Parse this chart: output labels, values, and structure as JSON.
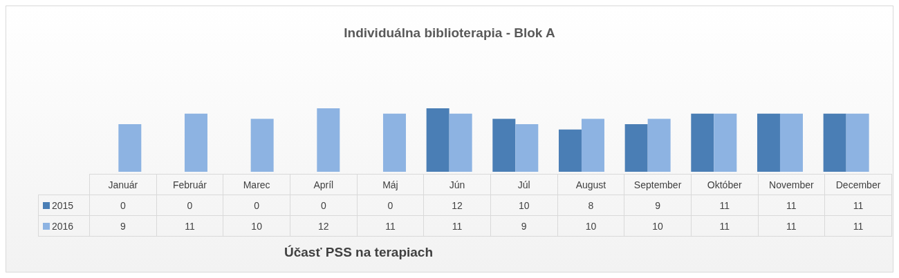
{
  "chart_data": {
    "type": "bar",
    "title": "Individuálna biblioterapia - Blok A",
    "xlabel": "Účasť PSS  na terapiach",
    "categories": [
      "Január",
      "Február",
      "Marec",
      "Apríl",
      "Máj",
      "Jún",
      "Júl",
      "August",
      "September",
      "Október",
      "November",
      "December"
    ],
    "series": [
      {
        "name": "2015",
        "color": "#4a7eb5",
        "values": [
          0,
          0,
          0,
          0,
          0,
          12,
          10,
          8,
          9,
          11,
          11,
          11
        ]
      },
      {
        "name": "2016",
        "color": "#8db3e2",
        "values": [
          9,
          11,
          10,
          12,
          11,
          11,
          9,
          10,
          10,
          11,
          11,
          11
        ]
      }
    ],
    "data_labels": true,
    "legend": "bottom left",
    "grid": false
  }
}
